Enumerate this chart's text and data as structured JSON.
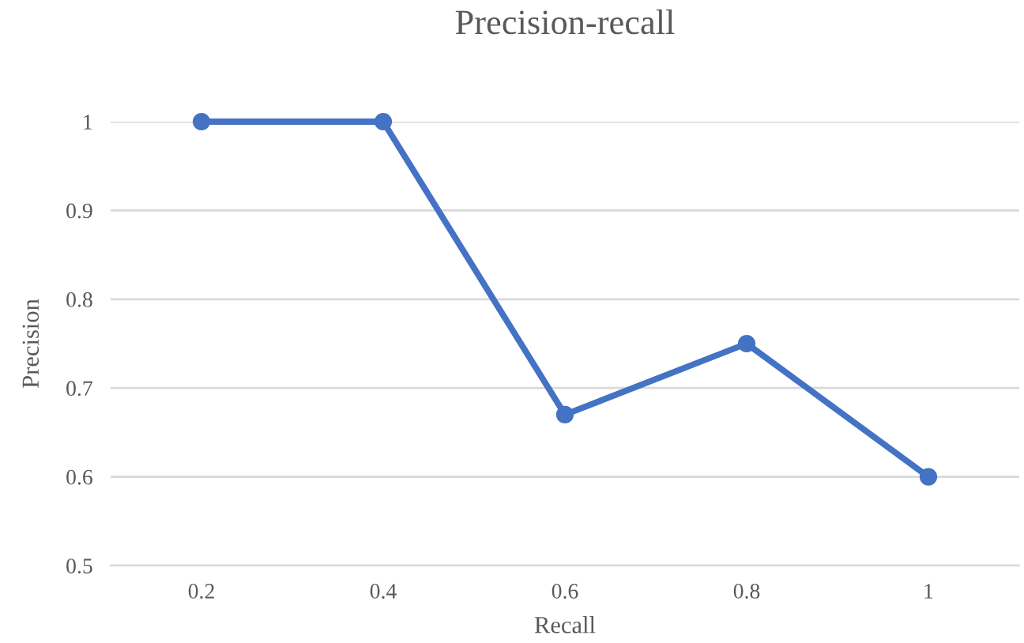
{
  "chart_data": {
    "type": "line",
    "title": "Precision-recall",
    "xlabel": "Recall",
    "ylabel": "Precision",
    "categories": [
      "0.2",
      "0.4",
      "0.6",
      "0.8",
      "1"
    ],
    "series": [
      {
        "color": "#4472c4",
        "values": [
          1,
          1,
          0.67,
          0.75,
          0.6
        ]
      }
    ],
    "ylim": [
      0.5,
      1
    ],
    "yticks": [
      0.5,
      0.6,
      0.7,
      0.8,
      0.9,
      1
    ],
    "grid": "y",
    "marker": "circle",
    "line_style": "solid"
  }
}
